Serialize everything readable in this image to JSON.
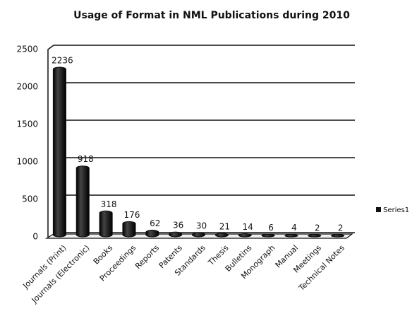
{
  "chart_data": {
    "type": "bar",
    "title": "Usage of Format in NML Publications during 2010",
    "categories": [
      "Journals (Print)",
      "Journals (Electronic)",
      "Books",
      "Proceedings",
      "Reports",
      "Patents",
      "Standards",
      "Thesis",
      "Bulletins",
      "Monograph",
      "Manual",
      "Meetings",
      "Technical Notes"
    ],
    "series": [
      {
        "name": "Series1",
        "color": "#111111",
        "values": [
          2236,
          918,
          318,
          176,
          62,
          36,
          30,
          21,
          14,
          6,
          4,
          2,
          2
        ]
      }
    ],
    "ylim": [
      0,
      2500
    ],
    "yticks": [
      0,
      500,
      1000,
      1500,
      2000,
      2500
    ],
    "grid": true,
    "legend": "right"
  }
}
